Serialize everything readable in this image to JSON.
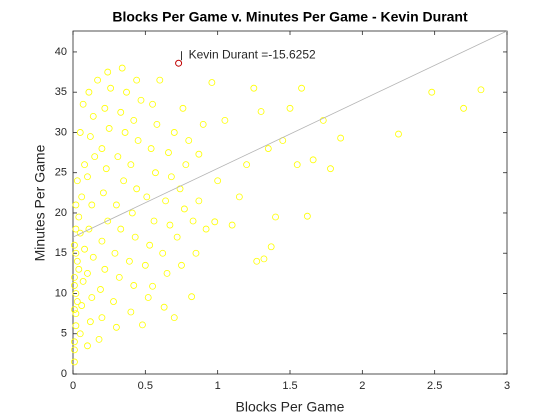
{
  "chart_data": {
    "type": "scatter",
    "title": "Blocks Per Game v. Minutes Per Game - Kevin Durant",
    "x_label": "Blocks Per Game",
    "y_label": "Minutes Per Game",
    "color": "#ffff00",
    "xlim": [
      0,
      3
    ],
    "ylim": [
      0,
      42.6
    ],
    "xticks": [
      0,
      0.5,
      1,
      1.5,
      2,
      2.5,
      3
    ],
    "yticks": [
      0,
      5,
      10,
      15,
      20,
      25,
      30,
      35,
      40
    ],
    "x": [
      0.01,
      0.01,
      0.02,
      0.01,
      0.02,
      0.01,
      0.03,
      0.01,
      0.02,
      0.02,
      0.03,
      0.01,
      0.02,
      0.03,
      0.01,
      0.04,
      0.02,
      0.04,
      0.05,
      0.06,
      0.07,
      0.08,
      0.05,
      0.06,
      0.08,
      0.05,
      0.07,
      0.1,
      0.12,
      0.13,
      0.1,
      0.14,
      0.11,
      0.13,
      0.1,
      0.15,
      0.12,
      0.14,
      0.11,
      0.17,
      0.18,
      0.2,
      0.19,
      0.22,
      0.2,
      0.24,
      0.21,
      0.23,
      0.2,
      0.25,
      0.22,
      0.26,
      0.24,
      0.3,
      0.28,
      0.32,
      0.29,
      0.33,
      0.3,
      0.35,
      0.31,
      0.36,
      0.33,
      0.37,
      0.34,
      0.4,
      0.42,
      0.39,
      0.43,
      0.41,
      0.44,
      0.4,
      0.45,
      0.42,
      0.47,
      0.44,
      0.48,
      0.52,
      0.55,
      0.5,
      0.53,
      0.56,
      0.51,
      0.57,
      0.54,
      0.58,
      0.55,
      0.6,
      0.63,
      0.65,
      0.62,
      0.67,
      0.64,
      0.68,
      0.66,
      0.7,
      0.7,
      0.75,
      0.72,
      0.77,
      0.74,
      0.78,
      0.8,
      0.76,
      0.82,
      0.85,
      0.83,
      0.87,
      0.87,
      0.9,
      0.96,
      0.92,
      0.98,
      1.0,
      1.05,
      1.1,
      1.15,
      1.2,
      1.25,
      1.27,
      1.3,
      1.32,
      1.35,
      1.37,
      1.4,
      1.45,
      1.5,
      1.55,
      1.58,
      1.62,
      1.66,
      1.73,
      1.78,
      1.85,
      2.25,
      2.48,
      2.7,
      2.82
    ],
    "y": [
      1.5,
      4,
      6,
      8,
      10,
      12,
      14,
      16,
      18,
      21,
      24,
      3,
      7.5,
      9,
      11,
      13,
      15,
      19.5,
      5,
      8.5,
      11.5,
      15.5,
      17.5,
      22,
      26,
      30,
      33.5,
      3.5,
      6.5,
      9.5,
      12.5,
      14.5,
      18,
      21,
      24.5,
      27,
      29.5,
      32,
      35,
      36.5,
      4.3,
      7,
      10.5,
      13,
      16.5,
      19,
      22.5,
      25.5,
      28,
      30.5,
      33,
      35.5,
      37.5,
      5.8,
      9,
      12,
      15,
      18,
      21,
      24,
      27,
      30,
      32.5,
      35,
      38,
      7.7,
      11,
      14,
      17,
      20,
      23,
      26,
      29,
      31.5,
      34,
      36.5,
      6.1,
      9.5,
      10.9,
      13.5,
      16,
      19,
      22,
      25,
      28,
      31,
      33.5,
      36.5,
      8.3,
      12.5,
      15,
      18.5,
      21.5,
      24.5,
      27.5,
      30,
      7,
      13.5,
      17,
      20.5,
      23,
      26,
      29,
      33,
      9.6,
      15,
      19,
      21.5,
      27.3,
      31,
      36.2,
      18,
      18.9,
      24,
      31.5,
      18.5,
      22,
      26,
      35.5,
      14,
      32.6,
      14.3,
      28,
      15.8,
      19.5,
      29,
      33,
      26,
      35.5,
      19.6,
      26.6,
      31.5,
      25.5,
      29.3,
      29.8,
      35,
      33,
      35.3
    ],
    "fit_line": {
      "x": [
        0,
        3
      ],
      "y": [
        17,
        42.6
      ],
      "color": "#b4b4b4"
    },
    "highlight": {
      "x": 0.73,
      "y": 38.6,
      "color": "#c00000",
      "label": "Kevin Durant =-15.6252"
    }
  }
}
